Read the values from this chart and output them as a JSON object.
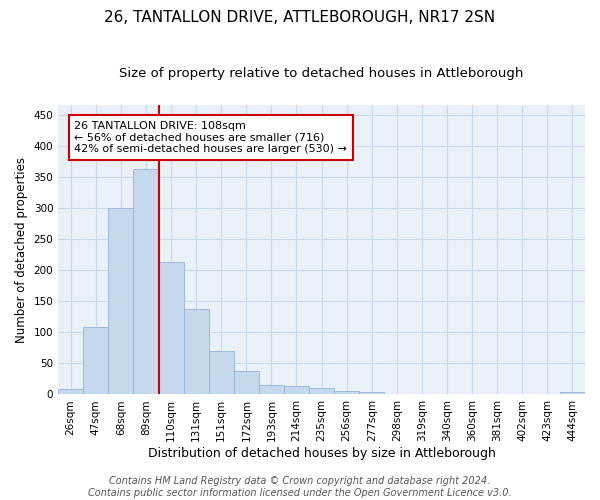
{
  "title": "26, TANTALLON DRIVE, ATTLEBOROUGH, NR17 2SN",
  "subtitle": "Size of property relative to detached houses in Attleborough",
  "xlabel": "Distribution of detached houses by size in Attleborough",
  "ylabel": "Number of detached properties",
  "categories": [
    "26sqm",
    "47sqm",
    "68sqm",
    "89sqm",
    "110sqm",
    "131sqm",
    "151sqm",
    "172sqm",
    "193sqm",
    "214sqm",
    "235sqm",
    "256sqm",
    "277sqm",
    "298sqm",
    "319sqm",
    "340sqm",
    "360sqm",
    "381sqm",
    "402sqm",
    "423sqm",
    "444sqm"
  ],
  "values": [
    8,
    108,
    300,
    363,
    213,
    137,
    70,
    38,
    15,
    13,
    10,
    6,
    4,
    0,
    0,
    0,
    0,
    0,
    0,
    0,
    4
  ],
  "bar_color": "#c5d8ed",
  "bar_edge_color": "#92b4d4",
  "grid_color": "#c8d8ea",
  "background_color": "#eaf0f8",
  "vline_x": 3.5,
  "vline_color": "#cc0000",
  "annotation_line1": "26 TANTALLON DRIVE: 108sqm",
  "annotation_line2": "← 56% of detached houses are smaller (716)",
  "annotation_line3": "42% of semi-detached houses are larger (530) →",
  "annotation_box_color": "#ffffff",
  "annotation_box_edge_color": "#cc0000",
  "footer_line1": "Contains HM Land Registry data © Crown copyright and database right 2024.",
  "footer_line2": "Contains public sector information licensed under the Open Government Licence v3.0.",
  "ylim": [
    0,
    465
  ],
  "yticks": [
    0,
    50,
    100,
    150,
    200,
    250,
    300,
    350,
    400,
    450
  ],
  "title_fontsize": 11,
  "subtitle_fontsize": 9.5,
  "ylabel_fontsize": 8.5,
  "xlabel_fontsize": 9,
  "tick_fontsize": 7.5,
  "footer_fontsize": 7
}
